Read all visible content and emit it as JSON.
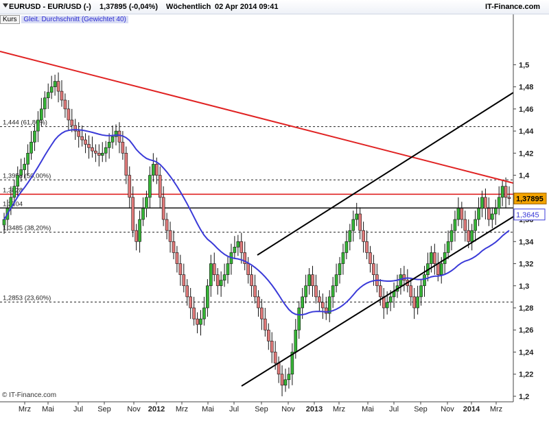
{
  "header": {
    "symbol": "EURUSD - EUR/USD (-)",
    "quote": "1,37895 (-0,04%)",
    "period": "Wöchentlich",
    "datetime": "02 Apr 2014 09:41",
    "brand": "IT-Finance.com"
  },
  "legend": {
    "price_label": "Kurs",
    "ma_label": "Gleit. Durchschnitt (Gewichtet 40)"
  },
  "footer": {
    "copyright": "© IT-Finance.com"
  },
  "colors": {
    "up": "#36b536",
    "down": "#e07a7a",
    "ma": "#3a3ad8",
    "trend_red": "#e02222",
    "channel": "#000000",
    "price_badge": "#f2a300"
  },
  "chart_data": {
    "type": "candlestick",
    "ylim": [
      1.195,
      1.535
    ],
    "y_ticks": [
      "1,2",
      "1,22",
      "1,24",
      "1,26",
      "1,28",
      "1,3",
      "1,32",
      "1,34",
      "1,36",
      "1,38",
      "1,4",
      "1,42",
      "1,44",
      "1,46",
      "1,48",
      "1,5"
    ],
    "x_ticks": [
      "Mrz",
      "Mai",
      "Jul",
      "Sep",
      "Nov",
      "2012",
      "Mrz",
      "Mai",
      "Jul",
      "Sep",
      "Nov",
      "2013",
      "Mrz",
      "Mai",
      "Jul",
      "Sep",
      "Nov",
      "2014",
      "Mrz"
    ],
    "levels": [
      {
        "value": 1.444,
        "label": "1,444 (61,80%)"
      },
      {
        "value": 1.3958,
        "label": "1,3958 (50,00%)"
      },
      {
        "value": 1.3828,
        "label": "1,3828"
      },
      {
        "value": 1.3704,
        "label": "1,3704"
      },
      {
        "value": 1.3485,
        "label": "1,3485 (38,20%)"
      },
      {
        "value": 1.2853,
        "label": "1,2853 (23,60%)"
      }
    ],
    "last_price": {
      "value": 1.37895,
      "label": "1,37895"
    },
    "ma_last": {
      "value": 1.3645,
      "label": "1,3645"
    },
    "series": [
      {
        "name": "EURUSD",
        "values": [
          1.36,
          1.37,
          1.38,
          1.39,
          1.4,
          1.405,
          1.41,
          1.42,
          1.43,
          1.44,
          1.45,
          1.46,
          1.47,
          1.475,
          1.48,
          1.485,
          1.476,
          1.468,
          1.46,
          1.45,
          1.445,
          1.44,
          1.435,
          1.432,
          1.428,
          1.425,
          1.422,
          1.42,
          1.418,
          1.42,
          1.425,
          1.43,
          1.435,
          1.44,
          1.43,
          1.42,
          1.4,
          1.38,
          1.35,
          1.34,
          1.36,
          1.37,
          1.38,
          1.4,
          1.41,
          1.4,
          1.38,
          1.36,
          1.35,
          1.34,
          1.33,
          1.32,
          1.31,
          1.3,
          1.29,
          1.28,
          1.27,
          1.265,
          1.27,
          1.28,
          1.3,
          1.32,
          1.31,
          1.3,
          1.305,
          1.31,
          1.32,
          1.33,
          1.335,
          1.34,
          1.33,
          1.32,
          1.31,
          1.3,
          1.29,
          1.28,
          1.27,
          1.26,
          1.25,
          1.24,
          1.23,
          1.22,
          1.21,
          1.215,
          1.22,
          1.24,
          1.26,
          1.28,
          1.29,
          1.3,
          1.31,
          1.3,
          1.29,
          1.285,
          1.28,
          1.275,
          1.29,
          1.3,
          1.31,
          1.32,
          1.33,
          1.34,
          1.35,
          1.36,
          1.365,
          1.35,
          1.34,
          1.33,
          1.32,
          1.31,
          1.3,
          1.29,
          1.28,
          1.285,
          1.29,
          1.295,
          1.3,
          1.31,
          1.305,
          1.3,
          1.29,
          1.28,
          1.29,
          1.3,
          1.31,
          1.32,
          1.33,
          1.32,
          1.31,
          1.32,
          1.33,
          1.34,
          1.35,
          1.36,
          1.37,
          1.36,
          1.35,
          1.34,
          1.35,
          1.36,
          1.37,
          1.38,
          1.37,
          1.36,
          1.365,
          1.37,
          1.38,
          1.39,
          1.38,
          1.37895
        ]
      },
      {
        "name": "Gleit. Durchschnitt (Gewichtet 40)"
      }
    ]
  }
}
